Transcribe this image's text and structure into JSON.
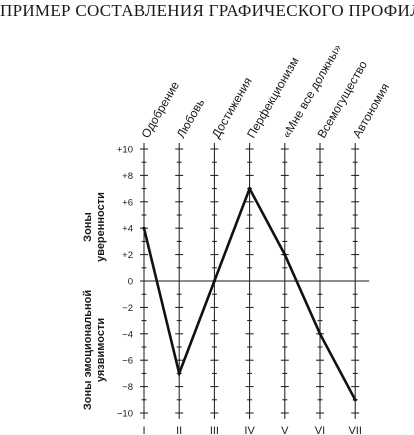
{
  "chart_data": {
    "type": "line",
    "title": "ПРИМЕР СОСТАВЛЕНИЯ ГРАФИЧЕСКОГО ПРОФИЛЯ",
    "categories": [
      "Одобрение",
      "Любовь",
      "Достижения",
      "Перфекционизм",
      "«Мне все должны»",
      "Всемогущество",
      "Автономия"
    ],
    "numerals": [
      "I",
      "II",
      "III",
      "IV",
      "V",
      "VI",
      "VII"
    ],
    "values": [
      4,
      -7,
      0,
      7,
      2,
      -4,
      -9
    ],
    "ylim": [
      -10,
      10
    ],
    "yticks": [
      "+10",
      "+8",
      "+6",
      "+4",
      "+2",
      "0",
      "−2",
      "−4",
      "−6",
      "−8",
      "−10"
    ],
    "zone_labels": {
      "positive": [
        "Зоны",
        "уверенности"
      ],
      "negative": [
        "Зоны эмоциональной",
        "уязвимости"
      ]
    }
  }
}
